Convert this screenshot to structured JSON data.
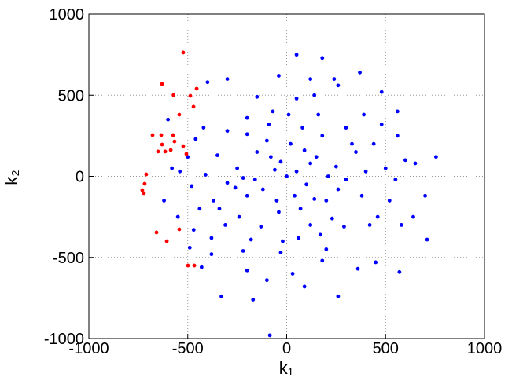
{
  "chart_data": {
    "type": "scatter",
    "x_label": "k₁",
    "y_label": "k₂",
    "xlim": [
      -1000,
      1000
    ],
    "ylim": [
      -1000,
      1000
    ],
    "xticks": [
      -1000,
      -500,
      0,
      500,
      1000
    ],
    "yticks": [
      -1000,
      -500,
      0,
      500,
      1000
    ],
    "grid": true,
    "series": [
      {
        "color": "#0000ff",
        "x": [
          0,
          50,
          -60,
          100,
          -120,
          150,
          -150,
          200,
          -200,
          250,
          -250,
          300,
          -300,
          20,
          -40,
          80,
          -90,
          120,
          -130,
          180,
          -200,
          230,
          -240,
          350,
          -350,
          380,
          -370,
          400,
          -410,
          10,
          -20,
          60,
          -70,
          160,
          -180,
          300,
          -300,
          290,
          -310,
          440,
          -440,
          460,
          -460,
          500,
          -480,
          520,
          -500,
          120,
          -80,
          40,
          -30,
          90,
          -160,
          210,
          -220,
          70,
          -100,
          140,
          -50,
          260,
          -260,
          330,
          -340,
          170,
          -200,
          420,
          -420,
          480,
          -470,
          390,
          -380,
          550,
          -540,
          560,
          -550,
          580,
          600,
          -580,
          50,
          -30,
          140,
          -150,
          200,
          -220,
          260,
          -40,
          30,
          -200,
          180,
          120,
          240,
          755,
          710,
          570,
          -85,
          -330,
          -170,
          90,
          260,
          360,
          50,
          180,
          370,
          -100,
          -430,
          -380,
          650,
          700,
          640,
          -400,
          -300,
          -620,
          -600,
          -490,
          450,
          480,
          560
        ],
        "values": [
          0,
          30,
          40,
          -50,
          -80,
          120,
          150,
          -150,
          -120,
          60,
          50,
          -20,
          -40,
          200,
          -220,
          300,
          320,
          -300,
          -310,
          250,
          260,
          -260,
          -250,
          150,
          130,
          -120,
          -150,
          30,
          10,
          380,
          -400,
          -380,
          400,
          380,
          -390,
          300,
          280,
          -310,
          -300,
          200,
          -200,
          -250,
          230,
          50,
          -60,
          -150,
          120,
          80,
          120,
          -120,
          90,
          160,
          -20,
          0,
          -10,
          -200,
          220,
          -140,
          -150,
          -80,
          -70,
          200,
          -200,
          -360,
          360,
          -300,
          300,
          320,
          -330,
          380,
          -380,
          -20,
          30,
          250,
          -250,
          -300,
          100,
          50,
          480,
          -470,
          500,
          490,
          -450,
          -460,
          560,
          620,
          -600,
          -580,
          -520,
          600,
          600,
          120,
          -390,
          -590,
          -980,
          -740,
          -760,
          -680,
          -740,
          -570,
          750,
          730,
          640,
          -640,
          -560,
          -480,
          80,
          -120,
          -250,
          580,
          600,
          -150,
          350,
          -440,
          -530,
          520,
          400
        ]
      },
      {
        "color": "#ff0000",
        "x": [
          -523,
          -630,
          -572,
          -487,
          -455,
          -543,
          -471,
          -678,
          -634,
          -574,
          -630,
          -650,
          -614,
          -586,
          -567,
          -710,
          -718,
          -730,
          -722,
          -658,
          -606,
          -499,
          -467,
          -543,
          -523,
          -507
        ],
        "values": [
          763,
          569,
          501,
          496,
          540,
          380,
          429,
          254,
          254,
          254,
          196,
          153,
          153,
          162,
          215,
          12,
          -46,
          -85,
          -104,
          -346,
          -400,
          -550,
          -550,
          -327,
          186,
          138
        ]
      }
    ]
  }
}
